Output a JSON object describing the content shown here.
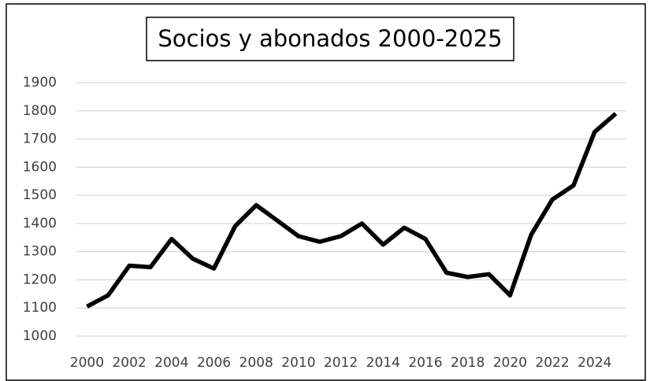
{
  "chart_data": {
    "type": "line",
    "title": "Socios y abonados 2000-2025",
    "x": [
      2000,
      2001,
      2002,
      2003,
      2004,
      2005,
      2006,
      2007,
      2008,
      2009,
      2010,
      2011,
      2012,
      2013,
      2014,
      2015,
      2016,
      2017,
      2018,
      2019,
      2020,
      2021,
      2022,
      2023,
      2024,
      2025
    ],
    "values": [
      1105,
      1145,
      1250,
      1245,
      1345,
      1275,
      1240,
      1390,
      1465,
      1410,
      1355,
      1335,
      1355,
      1400,
      1325,
      1385,
      1345,
      1225,
      1210,
      1220,
      1145,
      1360,
      1485,
      1535,
      1725,
      1790
    ],
    "color": "#000000",
    "xlim": [
      1999.5,
      2025.5
    ],
    "xticks": [
      2000,
      2002,
      2004,
      2006,
      2008,
      2010,
      2012,
      2014,
      2016,
      2018,
      2020,
      2022,
      2024
    ],
    "ylim": [
      1000,
      1900
    ],
    "yticks": [
      1000,
      1100,
      1200,
      1300,
      1400,
      1500,
      1600,
      1700,
      1800,
      1900
    ],
    "grid": true
  }
}
